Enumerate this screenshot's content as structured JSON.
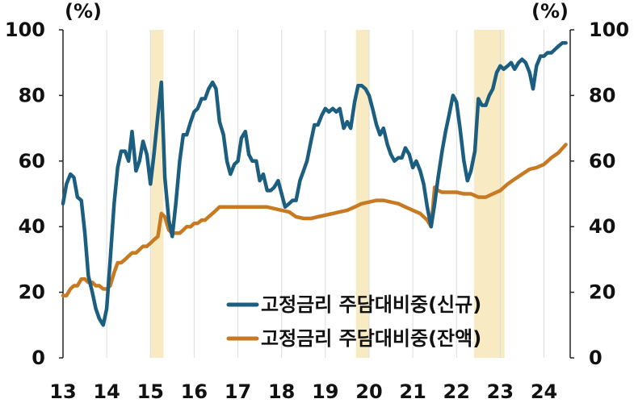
{
  "chart_data": {
    "type": "line",
    "title": "",
    "xlabel": "",
    "ylabel_left": "(%)",
    "ylabel_right": "(%)",
    "ylim": [
      0,
      100
    ],
    "yticks": [
      "0",
      "20",
      "40",
      "60",
      "80",
      "100"
    ],
    "xticks": [
      "13",
      "14",
      "15",
      "16",
      "17",
      "18",
      "19",
      "20",
      "21",
      "22",
      "23",
      "24"
    ],
    "grid": "vertical",
    "legend_position": "bottom-right",
    "shaded_periods": [
      {
        "start": 2015.0,
        "end": 2015.3
      },
      {
        "start": 2019.7,
        "end": 2020.0
      },
      {
        "start": 2022.4,
        "end": 2023.1
      }
    ],
    "series": [
      {
        "name": "고정금리 주담대비중(신규)",
        "color": "#1c5e80",
        "points": [
          [
            2013.0,
            47
          ],
          [
            2013.08,
            53
          ],
          [
            2013.17,
            56
          ],
          [
            2013.25,
            55
          ],
          [
            2013.33,
            49
          ],
          [
            2013.42,
            48
          ],
          [
            2013.5,
            38
          ],
          [
            2013.58,
            25
          ],
          [
            2013.67,
            20
          ],
          [
            2013.75,
            15
          ],
          [
            2013.83,
            12
          ],
          [
            2013.92,
            10
          ],
          [
            2014.0,
            15
          ],
          [
            2014.08,
            30
          ],
          [
            2014.17,
            47
          ],
          [
            2014.25,
            58
          ],
          [
            2014.33,
            63
          ],
          [
            2014.42,
            63
          ],
          [
            2014.5,
            60
          ],
          [
            2014.58,
            69
          ],
          [
            2014.67,
            57
          ],
          [
            2014.75,
            60
          ],
          [
            2014.83,
            66
          ],
          [
            2014.92,
            62
          ],
          [
            2015.0,
            53
          ],
          [
            2015.08,
            62
          ],
          [
            2015.17,
            74
          ],
          [
            2015.25,
            84
          ],
          [
            2015.33,
            55
          ],
          [
            2015.42,
            42
          ],
          [
            2015.5,
            37
          ],
          [
            2015.58,
            47
          ],
          [
            2015.67,
            60
          ],
          [
            2015.75,
            68
          ],
          [
            2015.83,
            68
          ],
          [
            2015.92,
            72
          ],
          [
            2016.0,
            75
          ],
          [
            2016.08,
            76
          ],
          [
            2016.17,
            79
          ],
          [
            2016.25,
            79
          ],
          [
            2016.33,
            82
          ],
          [
            2016.42,
            84
          ],
          [
            2016.5,
            82
          ],
          [
            2016.58,
            72
          ],
          [
            2016.67,
            68
          ],
          [
            2016.75,
            60
          ],
          [
            2016.83,
            56
          ],
          [
            2016.92,
            59
          ],
          [
            2017.0,
            60
          ],
          [
            2017.08,
            67
          ],
          [
            2017.17,
            69
          ],
          [
            2017.25,
            62
          ],
          [
            2017.33,
            60
          ],
          [
            2017.42,
            60
          ],
          [
            2017.5,
            54
          ],
          [
            2017.58,
            56
          ],
          [
            2017.67,
            51
          ],
          [
            2017.75,
            51
          ],
          [
            2017.83,
            52
          ],
          [
            2017.92,
            54
          ],
          [
            2018.0,
            50
          ],
          [
            2018.08,
            46
          ],
          [
            2018.17,
            47
          ],
          [
            2018.25,
            48
          ],
          [
            2018.33,
            48
          ],
          [
            2018.42,
            54
          ],
          [
            2018.5,
            57
          ],
          [
            2018.58,
            60
          ],
          [
            2018.67,
            66
          ],
          [
            2018.75,
            71
          ],
          [
            2018.83,
            71
          ],
          [
            2018.92,
            74
          ],
          [
            2019.0,
            76
          ],
          [
            2019.08,
            75
          ],
          [
            2019.17,
            76
          ],
          [
            2019.25,
            75
          ],
          [
            2019.33,
            76
          ],
          [
            2019.42,
            70
          ],
          [
            2019.5,
            72
          ],
          [
            2019.58,
            70
          ],
          [
            2019.67,
            78
          ],
          [
            2019.75,
            83
          ],
          [
            2019.83,
            83
          ],
          [
            2019.92,
            82
          ],
          [
            2020.0,
            80
          ],
          [
            2020.08,
            76
          ],
          [
            2020.17,
            71
          ],
          [
            2020.25,
            68
          ],
          [
            2020.33,
            70
          ],
          [
            2020.42,
            65
          ],
          [
            2020.5,
            62
          ],
          [
            2020.58,
            60
          ],
          [
            2020.67,
            61
          ],
          [
            2020.75,
            61
          ],
          [
            2020.83,
            64
          ],
          [
            2020.92,
            62
          ],
          [
            2021.0,
            58
          ],
          [
            2021.08,
            60
          ],
          [
            2021.17,
            57
          ],
          [
            2021.25,
            53
          ],
          [
            2021.33,
            46
          ],
          [
            2021.42,
            40
          ],
          [
            2021.5,
            47
          ],
          [
            2021.58,
            55
          ],
          [
            2021.67,
            63
          ],
          [
            2021.75,
            69
          ],
          [
            2021.83,
            74
          ],
          [
            2021.92,
            80
          ],
          [
            2022.0,
            78
          ],
          [
            2022.08,
            70
          ],
          [
            2022.17,
            60
          ],
          [
            2022.25,
            54
          ],
          [
            2022.33,
            57
          ],
          [
            2022.42,
            63
          ],
          [
            2022.5,
            79
          ],
          [
            2022.58,
            77
          ],
          [
            2022.67,
            77
          ],
          [
            2022.75,
            80
          ],
          [
            2022.83,
            82
          ],
          [
            2022.92,
            87
          ],
          [
            2023.0,
            89
          ],
          [
            2023.08,
            88
          ],
          [
            2023.17,
            89
          ],
          [
            2023.25,
            90
          ],
          [
            2023.33,
            88
          ],
          [
            2023.42,
            90
          ],
          [
            2023.5,
            91
          ],
          [
            2023.58,
            90
          ],
          [
            2023.67,
            87
          ],
          [
            2023.75,
            82
          ],
          [
            2023.83,
            89
          ],
          [
            2023.92,
            92
          ],
          [
            2024.0,
            92
          ],
          [
            2024.08,
            93
          ],
          [
            2024.17,
            93
          ],
          [
            2024.25,
            94
          ],
          [
            2024.33,
            95
          ],
          [
            2024.42,
            96
          ],
          [
            2024.5,
            96
          ]
        ]
      },
      {
        "name": "고정금리 주담대비중(잔액)",
        "color": "#c87a22",
        "points": [
          [
            2013.0,
            19
          ],
          [
            2013.08,
            19
          ],
          [
            2013.17,
            21
          ],
          [
            2013.25,
            22
          ],
          [
            2013.33,
            22
          ],
          [
            2013.42,
            24
          ],
          [
            2013.5,
            24
          ],
          [
            2013.58,
            23
          ],
          [
            2013.67,
            23
          ],
          [
            2013.75,
            22
          ],
          [
            2013.83,
            22
          ],
          [
            2013.92,
            21
          ],
          [
            2014.0,
            21
          ],
          [
            2014.08,
            22
          ],
          [
            2014.17,
            26
          ],
          [
            2014.25,
            29
          ],
          [
            2014.33,
            29
          ],
          [
            2014.42,
            30
          ],
          [
            2014.5,
            31
          ],
          [
            2014.58,
            32
          ],
          [
            2014.67,
            32
          ],
          [
            2014.75,
            33
          ],
          [
            2014.83,
            34
          ],
          [
            2014.92,
            34
          ],
          [
            2015.0,
            35
          ],
          [
            2015.08,
            36
          ],
          [
            2015.17,
            37
          ],
          [
            2015.25,
            44
          ],
          [
            2015.33,
            43
          ],
          [
            2015.42,
            39
          ],
          [
            2015.5,
            38
          ],
          [
            2015.58,
            38
          ],
          [
            2015.67,
            38
          ],
          [
            2015.75,
            39
          ],
          [
            2015.83,
            40
          ],
          [
            2015.92,
            40
          ],
          [
            2016.0,
            41
          ],
          [
            2016.08,
            41
          ],
          [
            2016.17,
            42
          ],
          [
            2016.25,
            42
          ],
          [
            2016.33,
            43
          ],
          [
            2016.42,
            44
          ],
          [
            2016.5,
            45
          ],
          [
            2016.58,
            46
          ],
          [
            2016.67,
            46
          ],
          [
            2016.75,
            46
          ],
          [
            2016.83,
            46
          ],
          [
            2016.92,
            46
          ],
          [
            2017.0,
            46
          ],
          [
            2017.17,
            46
          ],
          [
            2017.33,
            46
          ],
          [
            2017.5,
            46
          ],
          [
            2017.67,
            46
          ],
          [
            2017.83,
            45.5
          ],
          [
            2018.0,
            45
          ],
          [
            2018.17,
            44.5
          ],
          [
            2018.33,
            43
          ],
          [
            2018.5,
            42.5
          ],
          [
            2018.67,
            42.5
          ],
          [
            2018.83,
            43
          ],
          [
            2019.0,
            43.5
          ],
          [
            2019.17,
            44
          ],
          [
            2019.33,
            44.5
          ],
          [
            2019.5,
            45
          ],
          [
            2019.67,
            46
          ],
          [
            2019.83,
            47
          ],
          [
            2020.0,
            47.5
          ],
          [
            2020.17,
            48
          ],
          [
            2020.33,
            48
          ],
          [
            2020.5,
            47.5
          ],
          [
            2020.67,
            47
          ],
          [
            2020.83,
            46
          ],
          [
            2021.0,
            45
          ],
          [
            2021.17,
            44
          ],
          [
            2021.33,
            42
          ],
          [
            2021.42,
            40
          ],
          [
            2021.5,
            52
          ],
          [
            2021.58,
            51
          ],
          [
            2021.67,
            50.5
          ],
          [
            2021.83,
            50.5
          ],
          [
            2022.0,
            50.5
          ],
          [
            2022.17,
            50
          ],
          [
            2022.33,
            50
          ],
          [
            2022.5,
            49
          ],
          [
            2022.67,
            49
          ],
          [
            2022.83,
            50
          ],
          [
            2023.0,
            51
          ],
          [
            2023.17,
            53
          ],
          [
            2023.33,
            54.5
          ],
          [
            2023.5,
            56
          ],
          [
            2023.67,
            57.5
          ],
          [
            2023.83,
            58
          ],
          [
            2024.0,
            59
          ],
          [
            2024.17,
            61
          ],
          [
            2024.33,
            62.5
          ],
          [
            2024.5,
            65
          ]
        ]
      }
    ]
  }
}
